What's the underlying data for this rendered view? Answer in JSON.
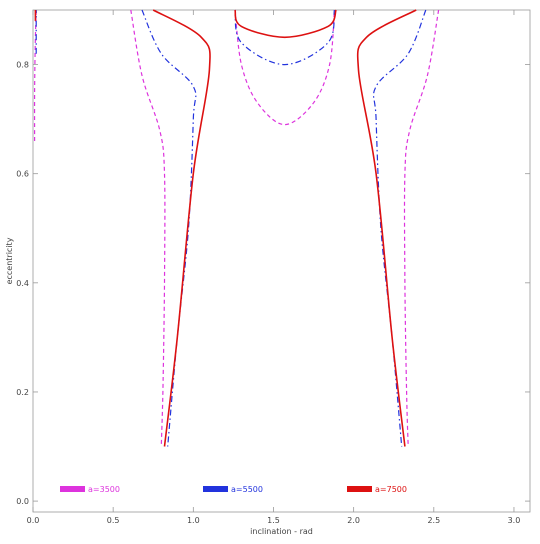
{
  "chart_data": {
    "type": "line",
    "title": "",
    "xlabel": "inclination - rad",
    "ylabel": "eccentricity",
    "xlim": [
      0,
      3.1
    ],
    "ylim": [
      -0.02,
      0.9
    ],
    "xticks": [
      "0.0",
      "0.5",
      "1.0",
      "1.5",
      "2.0",
      "2.5",
      "3.0"
    ],
    "yticks": [
      "0.0",
      "0.2",
      "0.4",
      "0.6",
      "0.8"
    ],
    "grid": false,
    "legend": "bottom",
    "series": [
      {
        "name": "a=3500",
        "color": "#dd33dd",
        "dash": "dashed",
        "segments": [
          [
            [
              0.01,
              0.66
            ],
            [
              0.01,
              0.75
            ],
            [
              0.015,
              0.85
            ],
            [
              0.02,
              0.9
            ]
          ],
          [
            [
              0.61,
              0.9
            ],
            [
              0.68,
              0.78
            ],
            [
              0.79,
              0.68
            ],
            [
              0.82,
              0.6
            ],
            [
              0.82,
              0.4
            ],
            [
              0.81,
              0.2
            ],
            [
              0.8,
              0.1
            ]
          ],
          [
            [
              1.26,
              0.9
            ],
            [
              1.3,
              0.8
            ],
            [
              1.4,
              0.73
            ],
            [
              1.57,
              0.69
            ],
            [
              1.75,
              0.73
            ],
            [
              1.85,
              0.8
            ],
            [
              1.88,
              0.9
            ]
          ],
          [
            [
              2.53,
              0.9
            ],
            [
              2.46,
              0.78
            ],
            [
              2.35,
              0.68
            ],
            [
              2.32,
              0.6
            ],
            [
              2.32,
              0.4
            ],
            [
              2.33,
              0.2
            ],
            [
              2.34,
              0.1
            ]
          ]
        ]
      },
      {
        "name": "a=5500",
        "color": "#2233dd",
        "dash": "dashdot",
        "segments": [
          [
            [
              0.02,
              0.82
            ],
            [
              0.02,
              0.86
            ],
            [
              0.02,
              0.9
            ]
          ],
          [
            [
              0.68,
              0.9
            ],
            [
              0.8,
              0.82
            ],
            [
              1.0,
              0.76
            ],
            [
              1.0,
              0.7
            ],
            [
              0.97,
              0.5
            ],
            [
              0.9,
              0.3
            ],
            [
              0.84,
              0.1
            ]
          ],
          [
            [
              1.26,
              0.9
            ],
            [
              1.3,
              0.84
            ],
            [
              1.57,
              0.8
            ],
            [
              1.84,
              0.84
            ],
            [
              1.88,
              0.9
            ]
          ],
          [
            [
              2.45,
              0.9
            ],
            [
              2.34,
              0.82
            ],
            [
              2.14,
              0.76
            ],
            [
              2.14,
              0.7
            ],
            [
              2.17,
              0.5
            ],
            [
              2.24,
              0.3
            ],
            [
              2.3,
              0.1
            ]
          ]
        ]
      },
      {
        "name": "a=7500",
        "color": "#dd1111",
        "dash": "solid",
        "segments": [
          [
            [
              0.015,
              0.88
            ],
            [
              0.015,
              0.9
            ]
          ],
          [
            [
              0.75,
              0.9
            ],
            [
              1.05,
              0.85
            ],
            [
              1.1,
              0.79
            ],
            [
              1.0,
              0.6
            ],
            [
              0.9,
              0.3
            ],
            [
              0.82,
              0.1
            ]
          ],
          [
            [
              1.26,
              0.9
            ],
            [
              1.3,
              0.87
            ],
            [
              1.57,
              0.85
            ],
            [
              1.84,
              0.87
            ],
            [
              1.89,
              0.9
            ]
          ],
          [
            [
              2.39,
              0.9
            ],
            [
              2.08,
              0.85
            ],
            [
              2.03,
              0.79
            ],
            [
              2.14,
              0.6
            ],
            [
              2.24,
              0.3
            ],
            [
              2.32,
              0.1
            ]
          ]
        ]
      }
    ]
  }
}
